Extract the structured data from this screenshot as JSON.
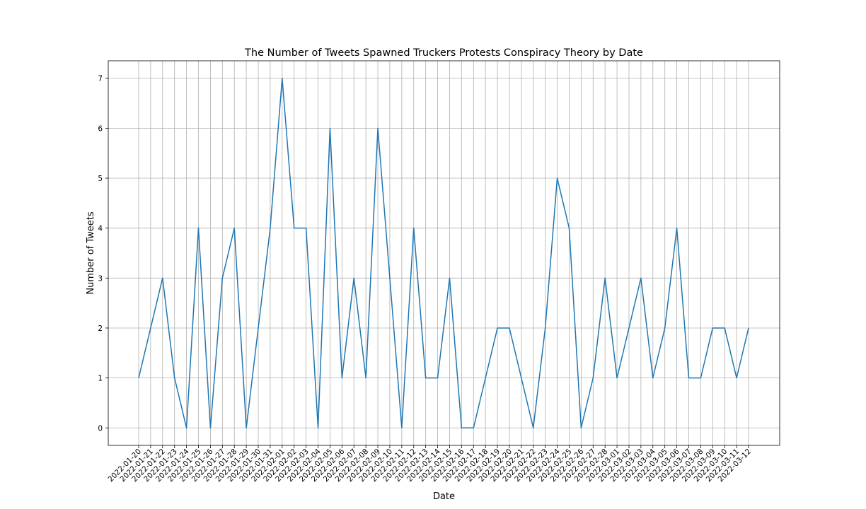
{
  "chart_data": {
    "type": "line",
    "title": "The Number of Tweets Spawned Truckers Protests Conspiracy Theory by Date",
    "xlabel": "Date",
    "ylabel": "Number of Tweets",
    "categories": [
      "2022-01-20",
      "2022-01-21",
      "2022-01-22",
      "2022-01-23",
      "2022-01-24",
      "2022-01-25",
      "2022-01-26",
      "2022-01-27",
      "2022-01-28",
      "2022-01-29",
      "2022-01-30",
      "2022-01-31",
      "2022-02-01",
      "2022-02-02",
      "2022-02-03",
      "2022-02-04",
      "2022-02-05",
      "2022-02-06",
      "2022-02-07",
      "2022-02-08",
      "2022-02-09",
      "2022-02-10",
      "2022-02-11",
      "2022-02-12",
      "2022-02-13",
      "2022-02-14",
      "2022-02-15",
      "2022-02-16",
      "2022-02-17",
      "2022-02-18",
      "2022-02-19",
      "2022-02-20",
      "2022-02-21",
      "2022-02-22",
      "2022-02-23",
      "2022-02-24",
      "2022-02-25",
      "2022-02-26",
      "2022-02-27",
      "2022-02-28",
      "2022-03-01",
      "2022-03-02",
      "2022-03-03",
      "2022-03-04",
      "2022-03-05",
      "2022-03-06",
      "2022-03-07",
      "2022-03-08",
      "2022-03-09",
      "2022-03-10",
      "2022-03-11",
      "2022-03-12"
    ],
    "values": [
      1,
      2,
      3,
      1,
      0,
      4,
      0,
      3,
      4,
      0,
      2,
      4,
      7,
      4,
      4,
      0,
      6,
      1,
      3,
      1,
      6,
      3,
      0,
      4,
      1,
      1,
      3,
      0,
      0,
      1,
      2,
      2,
      1,
      0,
      2,
      5,
      4,
      0,
      1,
      3,
      1,
      2,
      3,
      1,
      2,
      4,
      1,
      1,
      2,
      2,
      1,
      2
    ],
    "ylim": [
      -0.35,
      7.35
    ],
    "yticks": [
      0,
      1,
      2,
      3,
      4,
      5,
      6,
      7
    ],
    "grid": true,
    "line_color": "#1f77b4"
  }
}
